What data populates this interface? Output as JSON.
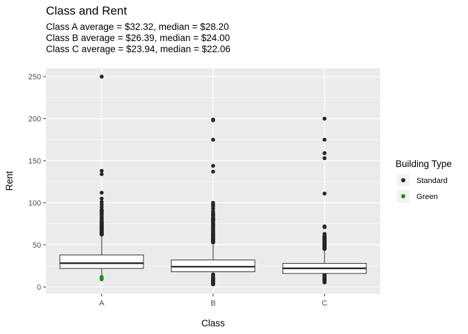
{
  "chart_data": {
    "type": "boxplot",
    "title": "Class and Rent",
    "subtitle_lines": [
      "Class A average = $32.32, median = $28.20",
      "Class B average = $26.39, median = $24.00",
      "Class C average = $23.94, median = $22.06"
    ],
    "xlabel": "Class",
    "ylabel": "Rent",
    "ylim": [
      -8,
      260
    ],
    "yticks": [
      0,
      50,
      100,
      150,
      200,
      250
    ],
    "categories": [
      "A",
      "B",
      "C"
    ],
    "grid": true,
    "boxes": [
      {
        "category": "A",
        "q1": 22,
        "median": 28.2,
        "q3": 38,
        "whisker_low": 9,
        "whisker_high": 62,
        "outliers": [
          250,
          138,
          134,
          112,
          105,
          101,
          98,
          95,
          92,
          90,
          88,
          86,
          84,
          82,
          80,
          78,
          76,
          74,
          72,
          70,
          68,
          66,
          64
        ],
        "dense_outlier_range": [
          62,
          92
        ],
        "green_points": [
          9,
          10,
          11,
          12
        ]
      },
      {
        "category": "B",
        "q1": 18,
        "median": 24.0,
        "q3": 32,
        "whisker_low": 3,
        "whisker_high": 53,
        "outliers": [
          199,
          198,
          175,
          144,
          137,
          100,
          98,
          96,
          93,
          90,
          88,
          85,
          82,
          80,
          78,
          75,
          73,
          70,
          68,
          65,
          62,
          60,
          57,
          55
        ],
        "dense_outlier_range": [
          53,
          88
        ],
        "low_outlier_range": [
          3,
          18
        ],
        "green_points": []
      },
      {
        "category": "C",
        "q1": 16,
        "median": 22.06,
        "q3": 28,
        "whisker_low": 5,
        "whisker_high": 45,
        "outliers": [
          200,
          175,
          159,
          153,
          111,
          72,
          71,
          63,
          61,
          59,
          57,
          55,
          53,
          51,
          49,
          47
        ],
        "dense_outlier_range": [
          45,
          60
        ],
        "low_outlier_range": [
          5,
          16
        ],
        "green_points": []
      }
    ],
    "legend": {
      "title": "Building Type",
      "position": "right",
      "entries": [
        {
          "label": "Standard",
          "color": "#262626"
        },
        {
          "label": "Green",
          "color": "#228B22"
        }
      ]
    },
    "colors": {
      "panel": "#ebebeb",
      "grid": "#ffffff",
      "point": "#262626",
      "green": "#228B22"
    }
  }
}
